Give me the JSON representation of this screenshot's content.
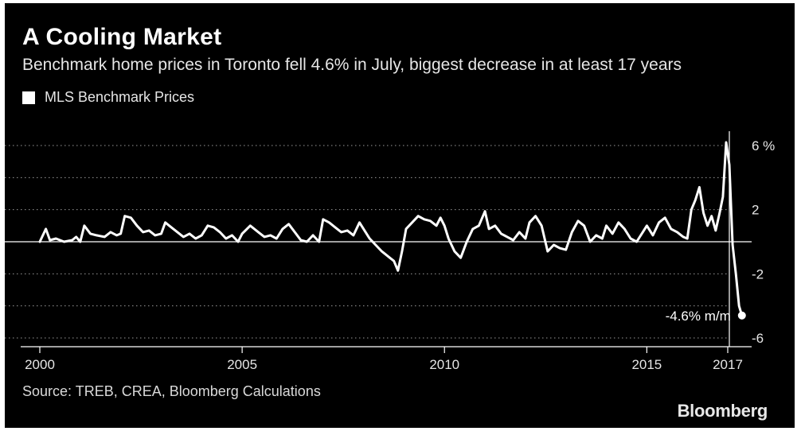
{
  "chart_data": {
    "type": "line",
    "title": "A Cooling Market",
    "subtitle": "Benchmark home prices in Toronto fell 4.6% in July, biggest decrease in at least 17 years",
    "legend": [
      "MLS Benchmark Prices"
    ],
    "xlabel": "",
    "ylabel": "",
    "xlim": [
      2000,
      2017.6
    ],
    "ylim": [
      -6,
      7
    ],
    "x_ticks": [
      2000,
      2005,
      2010,
      2015,
      2017
    ],
    "x_tick_labels": [
      "2000",
      "2005",
      "2010",
      "2015",
      "2017"
    ],
    "y_ticks": [
      6,
      2,
      -2,
      -6
    ],
    "y_tick_labels": [
      "6 %",
      "2",
      "-2",
      "-6"
    ],
    "gridlines": [
      6,
      4,
      2,
      -2,
      -4,
      -6
    ],
    "zero_line": true,
    "series": [
      {
        "name": "MLS Benchmark Prices",
        "color": "#ffffff",
        "x": [
          2000.0,
          2000.15,
          2000.25,
          2000.4,
          2000.6,
          2000.8,
          2000.9,
          2001.0,
          2001.1,
          2001.25,
          2001.4,
          2001.6,
          2001.75,
          2001.9,
          2002.0,
          2002.1,
          2002.25,
          2002.4,
          2002.55,
          2002.7,
          2002.85,
          2003.0,
          2003.1,
          2003.25,
          2003.4,
          2003.55,
          2003.7,
          2003.85,
          2004.0,
          2004.15,
          2004.3,
          2004.45,
          2004.6,
          2004.75,
          2004.9,
          2005.0,
          2005.2,
          2005.4,
          2005.55,
          2005.7,
          2005.85,
          2006.0,
          2006.15,
          2006.3,
          2006.45,
          2006.6,
          2006.75,
          2006.9,
          2007.0,
          2007.15,
          2007.3,
          2007.45,
          2007.6,
          2007.75,
          2007.9,
          2008.0,
          2008.15,
          2008.3,
          2008.45,
          2008.55,
          2008.65,
          2008.75,
          2008.85,
          2008.95,
          2009.05,
          2009.2,
          2009.35,
          2009.5,
          2009.65,
          2009.8,
          2009.9,
          2010.0,
          2010.1,
          2010.25,
          2010.4,
          2010.55,
          2010.7,
          2010.85,
          2011.0,
          2011.1,
          2011.25,
          2011.4,
          2011.55,
          2011.7,
          2011.85,
          2012.0,
          2012.1,
          2012.25,
          2012.4,
          2012.55,
          2012.7,
          2012.85,
          2013.0,
          2013.15,
          2013.3,
          2013.45,
          2013.6,
          2013.75,
          2013.9,
          2014.0,
          2014.15,
          2014.3,
          2014.45,
          2014.6,
          2014.75,
          2014.9,
          2015.0,
          2015.15,
          2015.3,
          2015.45,
          2015.6,
          2015.75,
          2015.9,
          2016.0,
          2016.1,
          2016.2,
          2016.3,
          2016.4,
          2016.5,
          2016.6,
          2016.7,
          2016.8,
          2016.88,
          2016.96,
          2017.04,
          2017.12,
          2017.2,
          2017.28,
          2017.35
        ],
        "values": [
          0.0,
          0.8,
          0.1,
          0.2,
          0.0,
          0.1,
          0.3,
          0.0,
          1.0,
          0.5,
          0.4,
          0.3,
          0.6,
          0.4,
          0.5,
          1.6,
          1.5,
          1.0,
          0.6,
          0.7,
          0.4,
          0.5,
          1.2,
          0.9,
          0.6,
          0.3,
          0.5,
          0.2,
          0.4,
          1.0,
          0.9,
          0.6,
          0.2,
          0.4,
          0.0,
          0.5,
          1.0,
          0.6,
          0.3,
          0.4,
          0.2,
          0.8,
          1.1,
          0.6,
          0.1,
          0.0,
          0.4,
          0.0,
          1.4,
          1.2,
          0.9,
          0.6,
          0.7,
          0.4,
          1.2,
          0.8,
          0.2,
          -0.2,
          -0.6,
          -0.8,
          -1.0,
          -1.2,
          -1.8,
          -0.6,
          0.8,
          1.2,
          1.6,
          1.4,
          1.3,
          1.0,
          1.5,
          1.0,
          0.2,
          -0.6,
          -1.0,
          0.0,
          0.8,
          1.0,
          1.9,
          0.8,
          1.0,
          0.5,
          0.3,
          0.1,
          0.6,
          0.2,
          1.2,
          1.6,
          1.0,
          -0.6,
          -0.2,
          -0.4,
          -0.5,
          0.6,
          1.3,
          1.0,
          0.0,
          0.4,
          0.2,
          1.0,
          0.5,
          1.2,
          0.8,
          0.2,
          0.0,
          0.6,
          1.0,
          0.4,
          1.2,
          1.5,
          0.8,
          0.6,
          0.3,
          0.2,
          2.0,
          2.6,
          3.4,
          1.8,
          1.0,
          1.6,
          0.7,
          1.8,
          2.8,
          6.2,
          4.8,
          -0.2,
          -2.0,
          -4.0,
          -4.6
        ]
      }
    ],
    "annotations": [
      {
        "text": "-4.6% m/m",
        "x": 2017.35,
        "y": -4.6
      }
    ],
    "source": "Source: TREB, CREA, Bloomberg Calculations",
    "brand": "Bloomberg"
  }
}
